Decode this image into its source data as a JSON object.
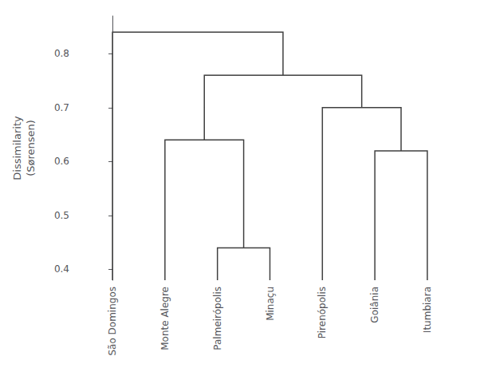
{
  "chart_data": {
    "type": "dendrogram",
    "ylabel": "Dissimilarity\n(Sørensen)",
    "categories": [
      "São Domingos",
      "Monte Alegre",
      "Palmeirópolis",
      "Minaçu",
      "Pirenópolis",
      "Goiânia",
      "Itumbiara"
    ],
    "tree": {
      "height": 0.84,
      "children": [
        "São Domingos",
        {
          "height": 0.76,
          "children": [
            {
              "height": 0.64,
              "children": [
                "Monte Alegre",
                {
                  "height": 0.44,
                  "children": [
                    "Palmeirópolis",
                    "Minaçu"
                  ]
                }
              ]
            },
            {
              "height": 0.7,
              "children": [
                "Pirenópolis",
                {
                  "height": 0.62,
                  "children": [
                    "Goiânia",
                    "Itumbiara"
                  ]
                }
              ]
            }
          ]
        }
      ]
    },
    "color": "#404040",
    "ylim": [
      0.38,
      0.87
    ],
    "yticks": [
      0.4,
      0.5,
      0.6,
      0.7,
      0.8
    ],
    "grid": false
  }
}
